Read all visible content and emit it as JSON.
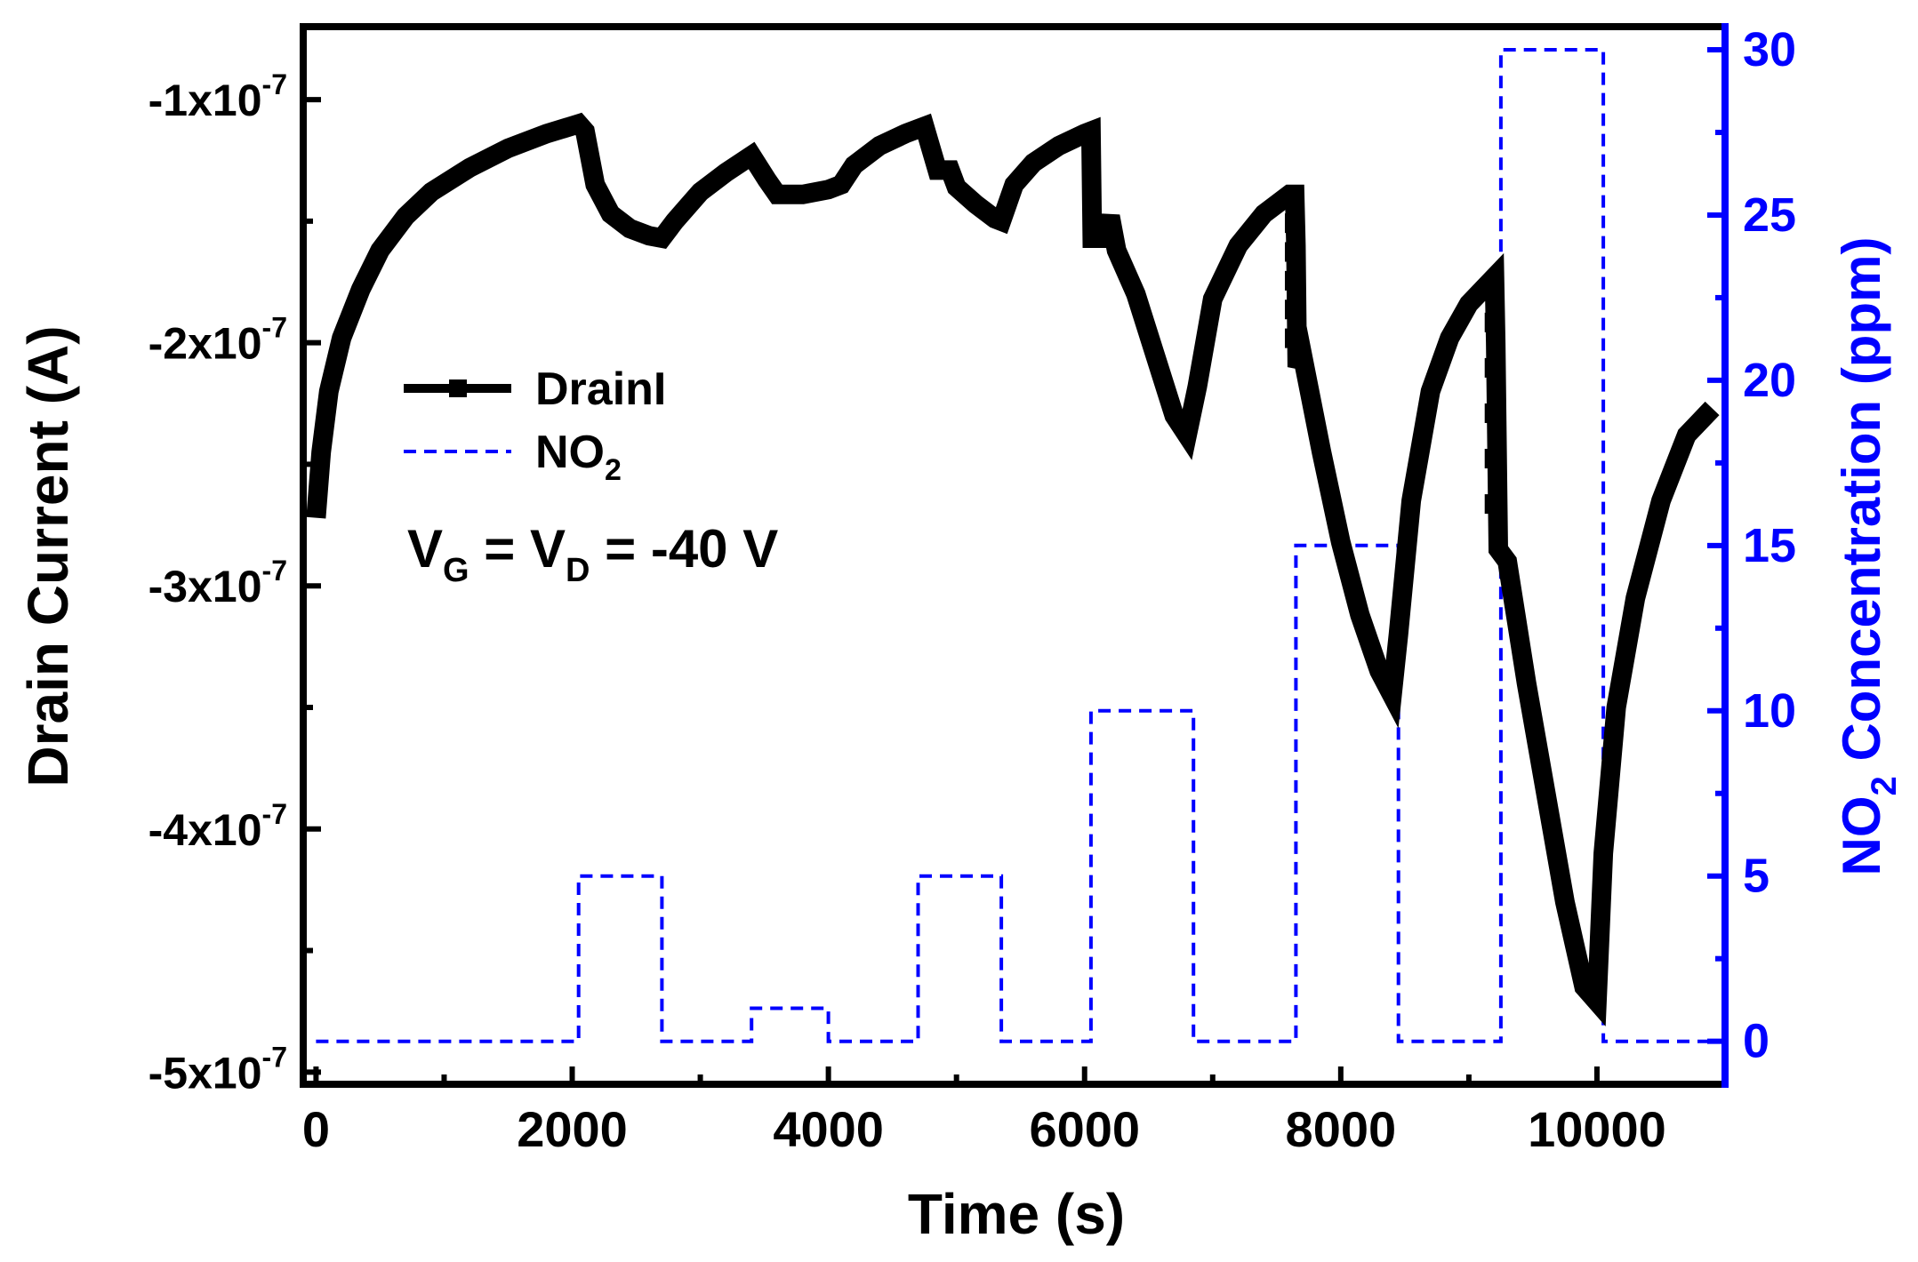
{
  "colors": {
    "drain": "#000000",
    "no2": "#0000ff",
    "background": "#ffffff"
  },
  "chart_data": {
    "type": "line",
    "xlabel": "Time (s)",
    "ylabel_left": "Drain Current (A)",
    "ylabel_right": {
      "main": "NO",
      "sub": "2",
      "rest": " Concentration (ppm)"
    },
    "xlim": [
      -100,
      11000
    ],
    "ylim_left": [
      -5.05e-07,
      -7e-08
    ],
    "ylim_right": [
      -1.3,
      30.7
    ],
    "x_ticks": [
      {
        "value": 0,
        "label": "0"
      },
      {
        "value": 2000,
        "label": "2000"
      },
      {
        "value": 4000,
        "label": "4000"
      },
      {
        "value": 6000,
        "label": "6000"
      },
      {
        "value": 8000,
        "label": "8000"
      },
      {
        "value": 10000,
        "label": "10000"
      }
    ],
    "x_minor_ticks": [
      1000,
      3000,
      5000,
      7000,
      9000
    ],
    "y_left_ticks": [
      {
        "value": -1e-07,
        "mant": "-1x10",
        "exp": "-7"
      },
      {
        "value": -2e-07,
        "mant": "-2x10",
        "exp": "-7"
      },
      {
        "value": -3e-07,
        "mant": "-3x10",
        "exp": "-7"
      },
      {
        "value": -4e-07,
        "mant": "-4x10",
        "exp": "-7"
      },
      {
        "value": -5e-07,
        "mant": "-5x10",
        "exp": "-7"
      }
    ],
    "y_left_minor_ticks": [
      -1.5e-07,
      -2.5e-07,
      -3.5e-07,
      -4.5e-07
    ],
    "y_right_ticks": [
      {
        "value": 0,
        "label": "0"
      },
      {
        "value": 5,
        "label": "5"
      },
      {
        "value": 10,
        "label": "10"
      },
      {
        "value": 15,
        "label": "15"
      },
      {
        "value": 20,
        "label": "20"
      },
      {
        "value": 25,
        "label": "25"
      },
      {
        "value": 30,
        "label": "30"
      }
    ],
    "y_right_minor_ticks": [
      2.5,
      7.5,
      12.5,
      17.5,
      22.5,
      27.5
    ],
    "legend": {
      "position": "upper-left",
      "entries": [
        {
          "label": "DrainI",
          "style": "solid-square"
        },
        {
          "label": "NO",
          "sub": "2",
          "style": "dashed"
        }
      ]
    },
    "annotation": {
      "v": "V",
      "g": "G",
      "eq1": " = V",
      "d": "D",
      "eq2": " = -40 V"
    },
    "series": [
      {
        "name": "DrainI",
        "axis": "left",
        "style": "solid-thick",
        "points": [
          [
            0,
            -2.72e-07
          ],
          [
            40,
            -2.45e-07
          ],
          [
            100,
            -2.2e-07
          ],
          [
            200,
            -1.98e-07
          ],
          [
            350,
            -1.78e-07
          ],
          [
            500,
            -1.62e-07
          ],
          [
            700,
            -1.48e-07
          ],
          [
            900,
            -1.38e-07
          ],
          [
            1200,
            -1.28e-07
          ],
          [
            1500,
            -1.2e-07
          ],
          [
            1800,
            -1.14e-07
          ],
          [
            2050,
            -1.1e-07
          ],
          [
            2100,
            -1.13e-07
          ],
          [
            2180,
            -1.35e-07
          ],
          [
            2300,
            -1.47e-07
          ],
          [
            2450,
            -1.53e-07
          ],
          [
            2600,
            -1.56e-07
          ],
          [
            2700,
            -1.57e-07
          ],
          [
            2800,
            -1.5e-07
          ],
          [
            3000,
            -1.38e-07
          ],
          [
            3200,
            -1.3e-07
          ],
          [
            3400,
            -1.23e-07
          ],
          [
            3520,
            -1.33e-07
          ],
          [
            3600,
            -1.39e-07
          ],
          [
            3800,
            -1.39e-07
          ],
          [
            4000,
            -1.37e-07
          ],
          [
            4100,
            -1.35e-07
          ],
          [
            4200,
            -1.27e-07
          ],
          [
            4400,
            -1.19e-07
          ],
          [
            4600,
            -1.14e-07
          ],
          [
            4750,
            -1.11e-07
          ],
          [
            4800,
            -1.2e-07
          ],
          [
            4850,
            -1.29e-07
          ],
          [
            4950,
            -1.29e-07
          ],
          [
            5000,
            -1.36e-07
          ],
          [
            5150,
            -1.43e-07
          ],
          [
            5300,
            -1.49e-07
          ],
          [
            5350,
            -1.5e-07
          ],
          [
            5450,
            -1.35e-07
          ],
          [
            5600,
            -1.26e-07
          ],
          [
            5800,
            -1.19e-07
          ],
          [
            6000,
            -1.14e-07
          ],
          [
            6050,
            -1.13e-07
          ],
          [
            6060,
            -1.57e-07
          ],
          [
            6150,
            -1.57e-07
          ],
          [
            6200,
            -1.48e-07
          ],
          [
            6250,
            -1.62e-07
          ],
          [
            6400,
            -1.8e-07
          ],
          [
            6550,
            -2.05e-07
          ],
          [
            6700,
            -2.3e-07
          ],
          [
            6800,
            -2.38e-07
          ],
          [
            6880,
            -2.18e-07
          ],
          [
            7000,
            -1.82e-07
          ],
          [
            7200,
            -1.6e-07
          ],
          [
            7400,
            -1.47e-07
          ],
          [
            7600,
            -1.39e-07
          ],
          [
            7640,
            -1.39e-07
          ],
          [
            7650,
            -1.6e-07
          ],
          [
            7660,
            -2.1e-07
          ],
          [
            7700,
            -2.05e-07
          ],
          [
            7850,
            -2.45e-07
          ],
          [
            8000,
            -2.82e-07
          ],
          [
            8150,
            -3.12e-07
          ],
          [
            8300,
            -3.35e-07
          ],
          [
            8400,
            -3.45e-07
          ],
          [
            8450,
            -3.2e-07
          ],
          [
            8550,
            -2.65e-07
          ],
          [
            8700,
            -2.2e-07
          ],
          [
            8850,
            -1.98e-07
          ],
          [
            9000,
            -1.84e-07
          ],
          [
            9200,
            -1.73e-07
          ],
          [
            9210,
            -2e-07
          ],
          [
            9230,
            -2.85e-07
          ],
          [
            9300,
            -2.9e-07
          ],
          [
            9450,
            -3.4e-07
          ],
          [
            9600,
            -3.85e-07
          ],
          [
            9750,
            -4.3e-07
          ],
          [
            9900,
            -4.65e-07
          ],
          [
            10000,
            -4.71e-07
          ],
          [
            10050,
            -4.1e-07
          ],
          [
            10150,
            -3.5e-07
          ],
          [
            10300,
            -3.05e-07
          ],
          [
            10500,
            -2.65e-07
          ],
          [
            10700,
            -2.38e-07
          ],
          [
            10900,
            -2.27e-07
          ]
        ],
        "gaps": [
          [
            7640,
            7660
          ],
          [
            9200,
            9230
          ]
        ]
      },
      {
        "name": "NO2",
        "axis": "right",
        "style": "dashed",
        "points": [
          [
            0,
            0
          ],
          [
            2050,
            0
          ],
          [
            2050,
            5
          ],
          [
            2700,
            5
          ],
          [
            2700,
            0
          ],
          [
            3400,
            0
          ],
          [
            3400,
            1
          ],
          [
            4000,
            1
          ],
          [
            4000,
            0
          ],
          [
            4700,
            0
          ],
          [
            4700,
            5
          ],
          [
            5350,
            5
          ],
          [
            5350,
            0
          ],
          [
            6050,
            0
          ],
          [
            6050,
            10
          ],
          [
            6850,
            10
          ],
          [
            6850,
            0
          ],
          [
            7650,
            0
          ],
          [
            7650,
            15
          ],
          [
            8450,
            15
          ],
          [
            8450,
            0
          ],
          [
            9250,
            0
          ],
          [
            9250,
            30
          ],
          [
            10050,
            30
          ],
          [
            10050,
            0
          ],
          [
            10900,
            0
          ]
        ]
      }
    ]
  }
}
